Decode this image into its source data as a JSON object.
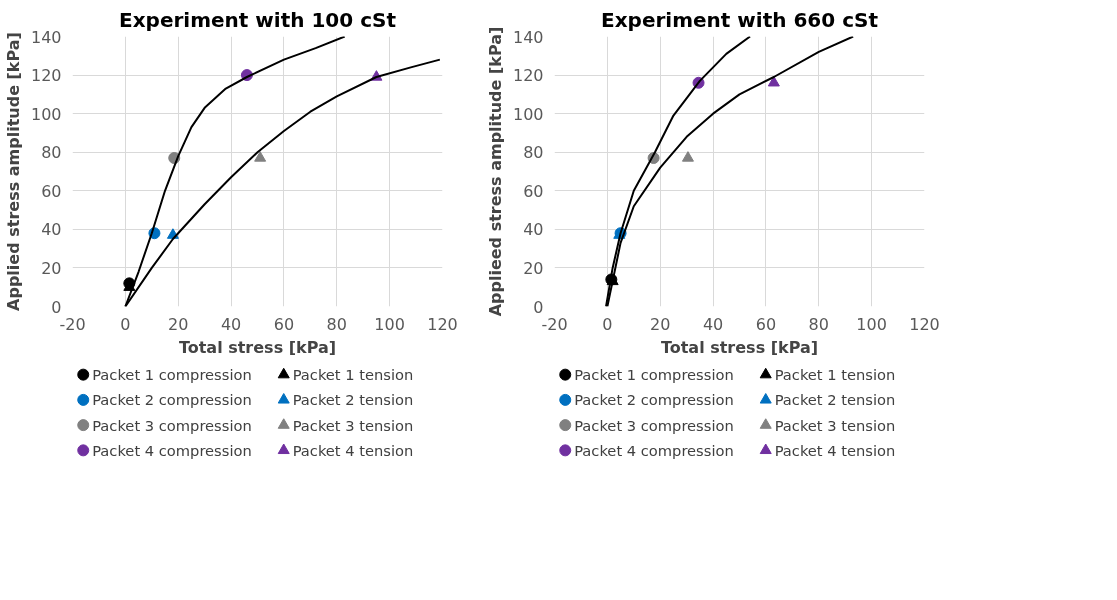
{
  "chart_data": [
    {
      "type": "scatter",
      "title": "Experiment with 100 cSt",
      "xlabel": "Total stress [kPa]",
      "ylabel": "Applied stress amplitude [kPa]",
      "xlim": [
        -20,
        120
      ],
      "ylim": [
        0,
        140
      ],
      "xticks": [
        -20,
        0,
        20,
        40,
        60,
        80,
        100,
        120
      ],
      "yticks": [
        0,
        20,
        40,
        60,
        80,
        100,
        120,
        140
      ],
      "grid": true,
      "legend": "bottom",
      "series": [
        {
          "name": "Packet 1 compression",
          "color": "#000000",
          "marker": "circle",
          "x": [
            1.5
          ],
          "values": [
            12
          ]
        },
        {
          "name": "Packet 1 tension",
          "color": "#000000",
          "marker": "triangle",
          "x": [
            1.5
          ],
          "values": [
            10
          ]
        },
        {
          "name": "Packet 2 compression",
          "color": "#0070c0",
          "marker": "circle",
          "x": [
            11
          ],
          "values": [
            38
          ]
        },
        {
          "name": "Packet 2 tension",
          "color": "#0070c0",
          "marker": "triangle",
          "x": [
            18
          ],
          "values": [
            37
          ]
        },
        {
          "name": "Packet 3 compression",
          "color": "#808080",
          "marker": "circle",
          "x": [
            18.5
          ],
          "values": [
            77
          ]
        },
        {
          "name": "Packet 3 tension",
          "color": "#808080",
          "marker": "triangle",
          "x": [
            51
          ],
          "values": [
            77
          ]
        },
        {
          "name": "Packet 4 compression",
          "color": "#7030a0",
          "marker": "circle",
          "x": [
            46
          ],
          "values": [
            120
          ]
        },
        {
          "name": "Packet 4 tension",
          "color": "#7030a0",
          "marker": "triangle",
          "x": [
            95
          ],
          "values": [
            119
          ]
        },
        {
          "type": "line",
          "color": "#000000",
          "marker": "none",
          "x": [
            0,
            5,
            10,
            15,
            20,
            25,
            30,
            38,
            46,
            60,
            72,
            83
          ],
          "values": [
            0,
            18,
            38,
            60,
            78,
            93,
            103,
            113,
            119,
            128,
            134,
            140
          ]
        },
        {
          "type": "line",
          "color": "#000000",
          "marker": "none",
          "x": [
            0,
            10,
            18,
            30,
            40,
            50,
            60,
            70,
            80,
            95,
            108,
            119
          ],
          "values": [
            0,
            20,
            35,
            53,
            67,
            80,
            91,
            101,
            109,
            119,
            124,
            128
          ]
        }
      ]
    },
    {
      "type": "scatter",
      "title": "Experiment with 660 cSt",
      "xlabel": "Total stress [kPa]",
      "ylabel": "Applieed stress amplitude [kPa]",
      "xlim": [
        -20,
        120
      ],
      "ylim": [
        0,
        140
      ],
      "xticks": [
        -20,
        0,
        20,
        40,
        60,
        80,
        100,
        120
      ],
      "yticks": [
        0,
        20,
        40,
        60,
        80,
        100,
        120,
        140
      ],
      "grid": true,
      "legend": "bottom",
      "series": [
        {
          "name": "Packet 1 compression",
          "color": "#000000",
          "marker": "circle",
          "x": [
            1.5
          ],
          "values": [
            14
          ]
        },
        {
          "name": "Packet 1 tension",
          "color": "#000000",
          "marker": "triangle",
          "x": [
            2
          ],
          "values": [
            13
          ]
        },
        {
          "name": "Packet 2 compression",
          "color": "#0070c0",
          "marker": "circle",
          "x": [
            5
          ],
          "values": [
            38
          ]
        },
        {
          "name": "Packet 2 tension",
          "color": "#0070c0",
          "marker": "triangle",
          "x": [
            4.5
          ],
          "values": [
            37
          ]
        },
        {
          "name": "Packet 3 compression",
          "color": "#808080",
          "marker": "circle",
          "x": [
            17.5
          ],
          "values": [
            77
          ]
        },
        {
          "name": "Packet 3 tension",
          "color": "#808080",
          "marker": "triangle",
          "x": [
            30.5
          ],
          "values": [
            77
          ]
        },
        {
          "name": "Packet 4 compression",
          "color": "#7030a0",
          "marker": "circle",
          "x": [
            34.5
          ],
          "values": [
            116
          ]
        },
        {
          "name": "Packet 4 tension",
          "color": "#7030a0",
          "marker": "triangle",
          "x": [
            63
          ],
          "values": [
            116
          ]
        },
        {
          "type": "line",
          "color": "#000000",
          "marker": "none",
          "x": [
            -0.5,
            2,
            5,
            10,
            18,
            25,
            35,
            45,
            54
          ],
          "values": [
            0,
            20,
            38,
            60,
            80,
            99,
            117,
            131,
            140
          ]
        },
        {
          "type": "line",
          "color": "#000000",
          "marker": "none",
          "x": [
            0,
            5,
            10,
            20,
            30,
            40,
            50,
            63,
            80,
            93
          ],
          "values": [
            0,
            33,
            52,
            72,
            88,
            100,
            110,
            119,
            132,
            140
          ]
        }
      ]
    }
  ]
}
